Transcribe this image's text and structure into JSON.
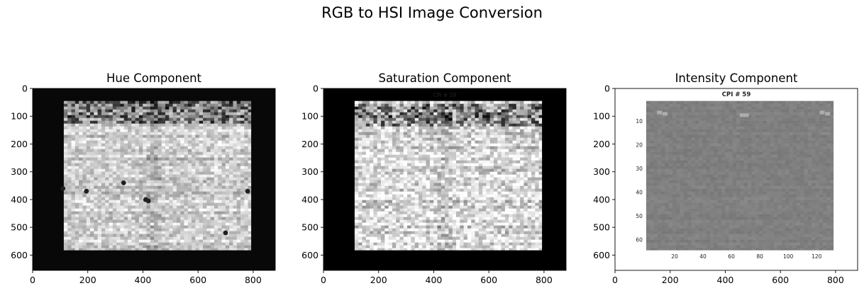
{
  "figure": {
    "suptitle": "RGB to HSI Image Conversion"
  },
  "chart_data": [
    {
      "type": "heatmap",
      "title": "Hue Component",
      "colormap": "gray",
      "image_size": [
        880,
        655
      ],
      "xlim": [
        0,
        880
      ],
      "ylim": [
        655,
        0
      ],
      "xticks": [
        0,
        200,
        400,
        600,
        800
      ],
      "yticks": [
        0,
        100,
        200,
        300,
        400,
        500,
        600
      ],
      "background_value": 0.03,
      "content_extent": {
        "x": [
          113,
          792
        ],
        "y": [
          45,
          582
        ]
      },
      "texture": {
        "mean": 0.8,
        "spread": 0.22
      },
      "dark_band_y": [
        45,
        120
      ],
      "dark_spots": [
        [
          195,
          370
        ],
        [
          410,
          400
        ],
        [
          420,
          405
        ],
        [
          330,
          340
        ],
        [
          780,
          370
        ],
        [
          700,
          520
        ],
        [
          110,
          360
        ]
      ]
    },
    {
      "type": "heatmap",
      "title": "Saturation Component",
      "colormap": "gray",
      "image_size": [
        880,
        655
      ],
      "xlim": [
        0,
        880
      ],
      "ylim": [
        655,
        0
      ],
      "xticks": [
        0,
        200,
        400,
        600,
        800
      ],
      "yticks": [
        0,
        100,
        200,
        300,
        400,
        500,
        600
      ],
      "background_value": 0.0,
      "content_extent": {
        "x": [
          113,
          792
        ],
        "y": [
          45,
          582
        ]
      },
      "texture": {
        "mean": 0.85,
        "spread": 0.3
      },
      "dark_band_y": [
        50,
        130
      ],
      "inner_text": "CPI # 59"
    },
    {
      "type": "heatmap",
      "title": "Intensity Component",
      "colormap": "gray",
      "image_size": [
        880,
        655
      ],
      "xlim": [
        0,
        880
      ],
      "ylim": [
        655,
        0
      ],
      "xticks": [
        0,
        200,
        400,
        600,
        800
      ],
      "yticks": [
        0,
        100,
        200,
        300,
        400,
        500,
        600
      ],
      "background_value": 1.0,
      "content_extent": {
        "x": [
          113,
          792
        ],
        "y": [
          45,
          582
        ]
      },
      "texture": {
        "mean": 0.5,
        "spread": 0.04
      },
      "inner_text": "CPI # 59",
      "inner_xticks": [
        "20",
        "40",
        "60",
        "80",
        "100",
        "120"
      ],
      "inner_yticks": [
        "10",
        "20",
        "30",
        "40",
        "50",
        "60"
      ]
    }
  ]
}
